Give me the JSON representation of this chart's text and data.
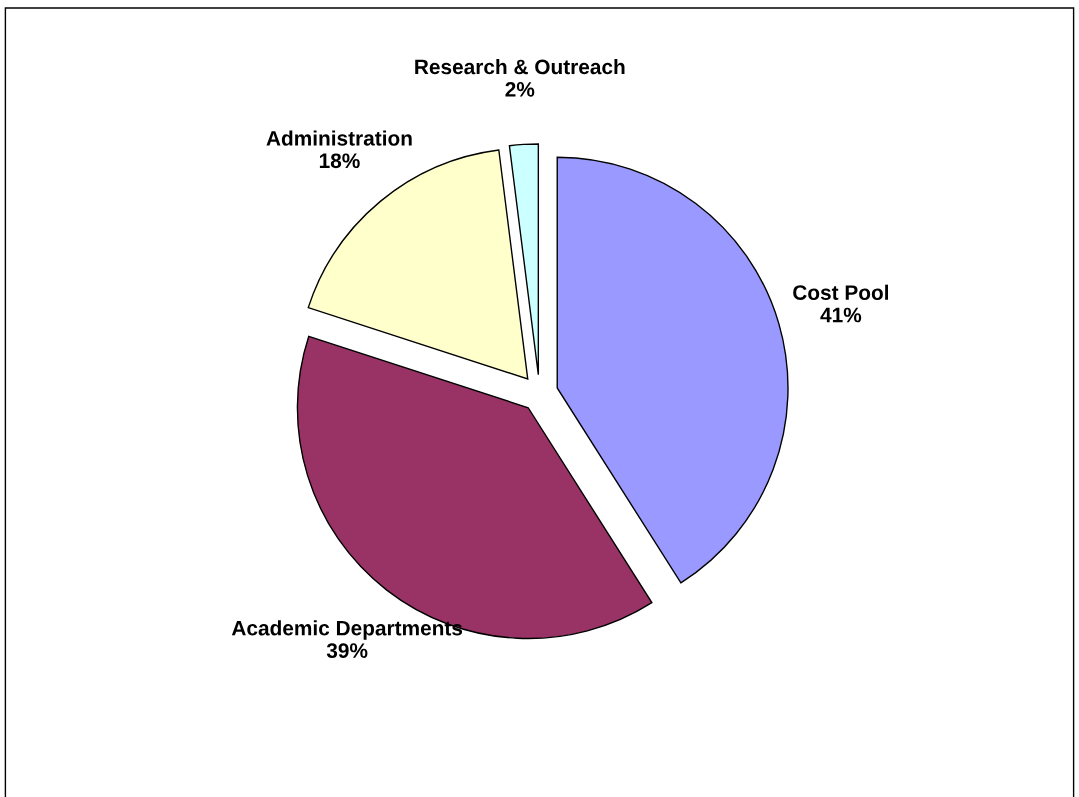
{
  "chart_data": {
    "type": "pie",
    "categories": [
      "Cost Pool",
      "Academic Departments",
      "Administration",
      "Research & Outreach"
    ],
    "values": [
      41,
      39,
      18,
      2
    ],
    "value_labels": [
      "41%",
      "39%",
      "18%",
      "2%"
    ],
    "colors": [
      "#9999ff",
      "#993366",
      "#ffffcc",
      "#ccffff"
    ],
    "legend": false
  }
}
